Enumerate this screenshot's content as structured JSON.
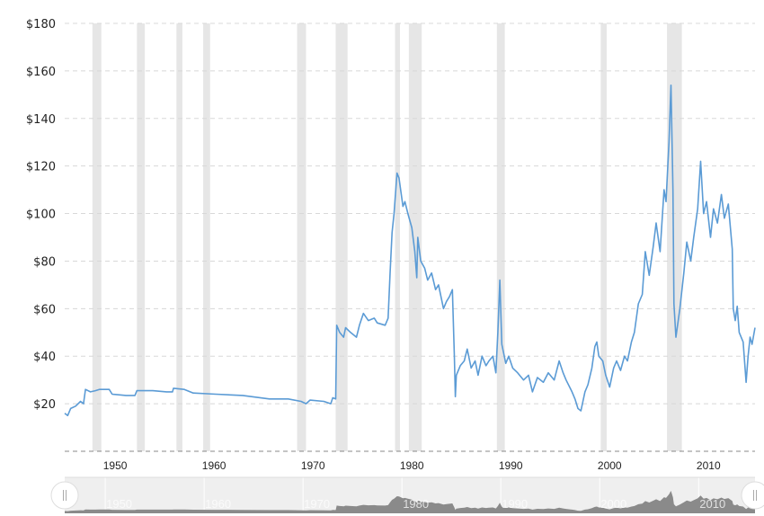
{
  "chart_data": {
    "type": "line",
    "title": "",
    "xlabel": "",
    "ylabel": "",
    "xlim": [
      1944.9,
      2014.7
    ],
    "ylim": [
      0,
      180
    ],
    "grid": true,
    "line_color": "#5b9bd5",
    "recession_color": "#e6e6e6",
    "y_ticks": [
      20,
      40,
      60,
      80,
      100,
      120,
      140,
      160,
      180
    ],
    "y_tick_labels": [
      "$20",
      "$40",
      "$60",
      "$80",
      "$100",
      "$120",
      "$140",
      "$160",
      "$180"
    ],
    "x_ticks": [
      1950,
      1960,
      1970,
      1980,
      1990,
      2000,
      2010
    ],
    "x_tick_labels": [
      "1950",
      "1960",
      "1970",
      "1980",
      "1990",
      "2000",
      "2010"
    ],
    "recessions": [
      [
        1947.7,
        1948.6
      ],
      [
        1952.2,
        1953.0
      ],
      [
        1956.2,
        1956.8
      ],
      [
        1958.9,
        1959.6
      ],
      [
        1968.4,
        1969.3
      ],
      [
        1972.3,
        1973.5
      ],
      [
        1978.3,
        1978.8
      ],
      [
        1979.7,
        1981.0
      ],
      [
        1988.6,
        1989.4
      ],
      [
        1999.1,
        1999.7
      ],
      [
        2005.8,
        2007.3
      ]
    ],
    "x": [
      1944.9,
      1945.2,
      1945.5,
      1946.0,
      1946.5,
      1946.8,
      1947.0,
      1947.5,
      1948.0,
      1948.4,
      1949.4,
      1949.7,
      1951.1,
      1952.0,
      1952.2,
      1953.8,
      1955.2,
      1955.8,
      1955.9,
      1957.0,
      1957.9,
      1960.2,
      1962.9,
      1965.6,
      1967.5,
      1968.8,
      1969.3,
      1969.7,
      1971.1,
      1971.8,
      1972.0,
      1972.3,
      1972.4,
      1972.7,
      1973.1,
      1973.3,
      1973.8,
      1974.4,
      1974.7,
      1975.1,
      1975.6,
      1976.2,
      1976.5,
      1977.3,
      1977.6,
      1977.8,
      1978.0,
      1978.2,
      1978.5,
      1978.7,
      1979.1,
      1979.3,
      1979.6,
      1980.0,
      1980.3,
      1980.5,
      1980.6,
      1980.9,
      1981.3,
      1981.6,
      1982.0,
      1982.4,
      1982.7,
      1983.2,
      1983.5,
      1983.8,
      1984.1,
      1984.3,
      1984.4,
      1984.5,
      1984.9,
      1985.3,
      1985.6,
      1986.0,
      1986.4,
      1986.7,
      1987.1,
      1987.5,
      1987.8,
      1988.2,
      1988.5,
      1988.7,
      1988.9,
      1989.1,
      1989.5,
      1989.8,
      1990.2,
      1990.7,
      1991.3,
      1991.8,
      1992.2,
      1992.7,
      1993.3,
      1993.8,
      1994.4,
      1994.9,
      1995.3,
      1995.6,
      1996.2,
      1996.5,
      1996.8,
      1997.1,
      1997.5,
      1997.8,
      1998.2,
      1998.5,
      1998.7,
      1998.9,
      1999.3,
      1999.6,
      2000.0,
      2000.4,
      2000.7,
      2001.1,
      2001.5,
      2001.8,
      2002.2,
      2002.5,
      2002.9,
      2003.3,
      2003.6,
      2004.0,
      2004.4,
      2004.7,
      2005.1,
      2005.5,
      2005.7,
      2006.0,
      2006.2,
      2006.4,
      2006.5,
      2006.7,
      2007.1,
      2007.5,
      2007.8,
      2008.2,
      2008.5,
      2008.9,
      2009.2,
      2009.5,
      2009.8,
      2010.2,
      2010.5,
      2010.9,
      2011.3,
      2011.6,
      2012.0,
      2012.4,
      2012.5,
      2012.7,
      2012.9,
      2013.1,
      2013.5,
      2013.8,
      2014.0,
      2014.2,
      2014.4,
      2014.7
    ],
    "y": [
      16,
      15,
      18,
      19,
      21,
      20,
      26,
      25,
      25.5,
      26,
      26,
      24,
      23.5,
      23.5,
      25.5,
      25.5,
      25,
      25,
      26.5,
      26,
      24.5,
      24,
      23.5,
      22,
      22,
      21,
      20,
      21.5,
      21,
      20,
      22.5,
      22,
      53,
      50,
      48,
      52,
      50,
      48,
      53,
      58,
      55,
      56,
      54,
      53,
      56,
      75,
      92,
      100,
      117,
      115,
      103,
      105,
      100,
      94,
      84,
      73,
      90,
      80,
      77,
      72,
      75,
      68,
      70,
      60,
      63,
      65,
      68,
      40,
      23,
      32,
      36,
      38,
      43,
      35,
      38,
      32,
      40,
      36,
      38,
      40,
      33,
      50,
      72,
      45,
      37,
      40,
      35,
      33,
      30,
      32,
      25,
      31,
      29,
      33,
      30,
      38,
      33,
      30,
      25,
      22,
      18,
      17,
      25,
      28,
      35,
      44,
      46,
      40,
      38,
      32,
      27,
      35,
      38,
      34,
      40,
      38,
      46,
      50,
      62,
      66,
      84,
      74,
      86,
      96,
      84,
      110,
      105,
      130,
      154,
      110,
      62,
      48,
      60,
      75,
      88,
      80,
      90,
      102,
      122,
      100,
      105,
      90,
      102,
      96,
      108,
      98,
      104,
      85,
      60,
      55,
      61,
      50,
      46,
      29,
      40,
      48,
      45,
      52
    ]
  }
}
